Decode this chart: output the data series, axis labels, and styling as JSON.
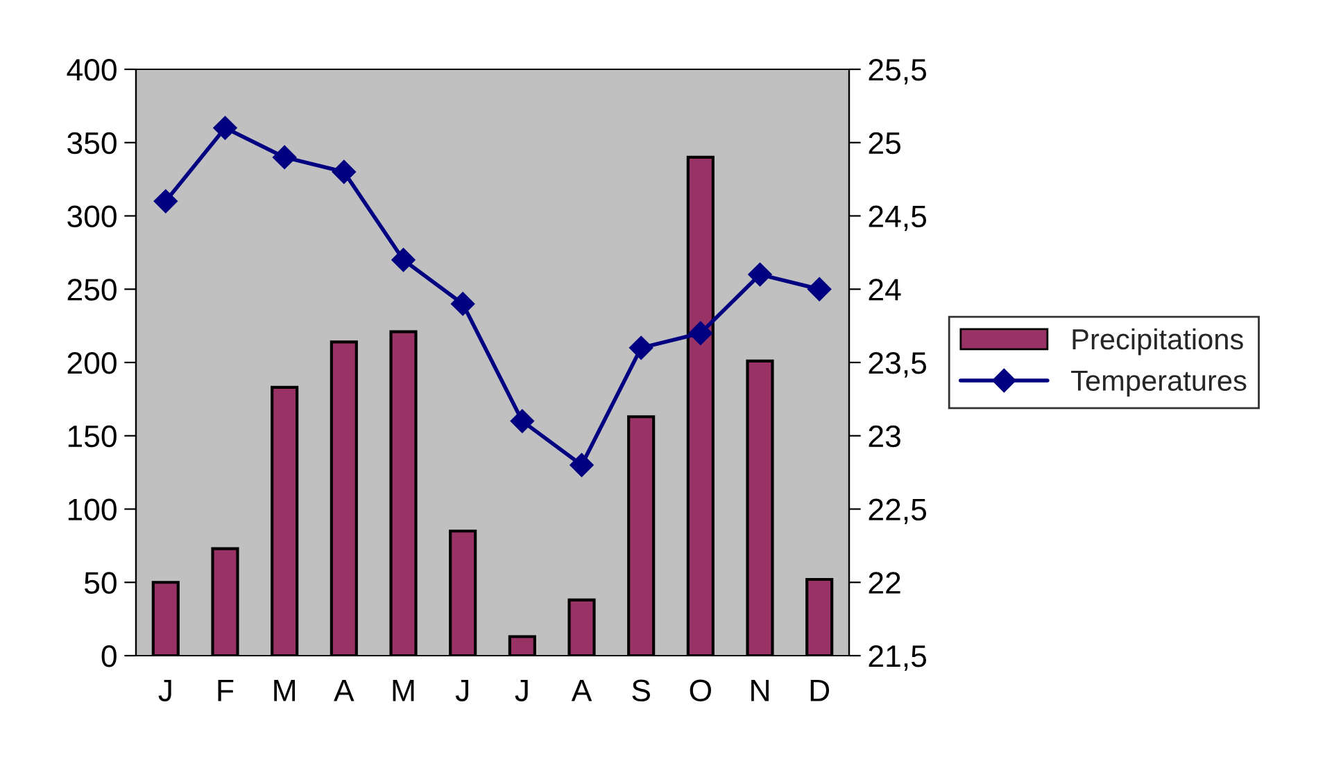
{
  "chart_data": {
    "type": "bar",
    "categories": [
      "J",
      "F",
      "M",
      "A",
      "M",
      "J",
      "J",
      "A",
      "S",
      "O",
      "N",
      "D"
    ],
    "series": [
      {
        "name": "Precipitations",
        "color": "#993366",
        "values": [
          50,
          73,
          183,
          214,
          221,
          85,
          13,
          38,
          163,
          340,
          201,
          52
        ]
      },
      {
        "name": "Temperatures",
        "type": "line",
        "axis": "y2",
        "color": "#000080",
        "marker": "diamond",
        "values": [
          24.6,
          25.1,
          24.9,
          24.8,
          24.2,
          23.9,
          23.1,
          22.8,
          23.6,
          23.7,
          24.1,
          24.0
        ]
      }
    ],
    "ylim": [
      0,
      400
    ],
    "yticks": [
      0,
      50,
      100,
      150,
      200,
      250,
      300,
      350,
      400
    ],
    "y2lim": [
      21.5,
      25.5
    ],
    "y2ticks": [
      {
        "value": 21.5,
        "label": "21,5"
      },
      22,
      {
        "value": 22.5,
        "label": "22,5"
      },
      23,
      {
        "value": 23.5,
        "label": "23,5"
      },
      24,
      {
        "value": 24.5,
        "label": "24,5"
      },
      25,
      {
        "value": 25.5,
        "label": "25,5"
      }
    ],
    "grid": false,
    "legend": "right"
  }
}
